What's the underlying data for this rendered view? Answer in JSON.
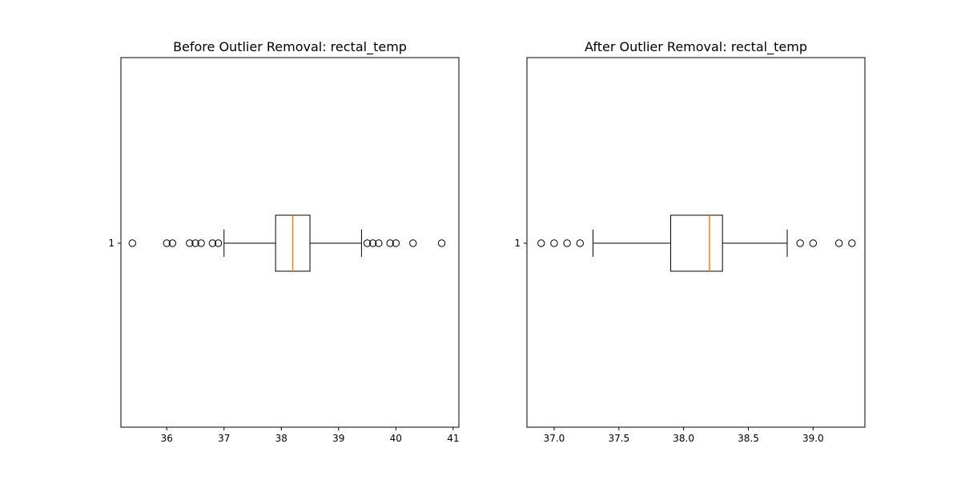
{
  "colors": {
    "background": "#ffffff",
    "axes": "#000000",
    "median": "#ff7f0e",
    "flier_edge": "#000000"
  },
  "chart_data": [
    {
      "type": "boxplot",
      "orientation": "horizontal",
      "title": "Before Outlier Removal: rectal_temp",
      "xlabel": "",
      "ylabel": "",
      "categories": [
        "1"
      ],
      "xlim": [
        35.2,
        41.1
      ],
      "x_ticks": [
        36,
        37,
        38,
        39,
        40,
        41
      ],
      "x_tick_labels": [
        "36",
        "37",
        "38",
        "39",
        "40",
        "41"
      ],
      "grid": false,
      "box": {
        "whisker_low": 37.0,
        "q1": 37.9,
        "median": 38.2,
        "q3": 38.5,
        "whisker_high": 39.4
      },
      "fliers": [
        35.4,
        36.0,
        36.1,
        36.4,
        36.5,
        36.6,
        36.8,
        36.9,
        39.5,
        39.6,
        39.7,
        39.9,
        40.0,
        40.3,
        40.8
      ]
    },
    {
      "type": "boxplot",
      "orientation": "horizontal",
      "title": "After Outlier Removal: rectal_temp",
      "xlabel": "",
      "ylabel": "",
      "categories": [
        "1"
      ],
      "xlim": [
        36.79,
        39.4
      ],
      "x_ticks": [
        37.0,
        37.5,
        38.0,
        38.5,
        39.0
      ],
      "x_tick_labels": [
        "37.0",
        "37.5",
        "38.0",
        "38.5",
        "39.0"
      ],
      "grid": false,
      "box": {
        "whisker_low": 37.3,
        "q1": 37.9,
        "median": 38.2,
        "q3": 38.3,
        "whisker_high": 38.8
      },
      "fliers": [
        36.9,
        37.0,
        37.1,
        37.2,
        38.9,
        39.0,
        39.2,
        39.3
      ]
    }
  ]
}
